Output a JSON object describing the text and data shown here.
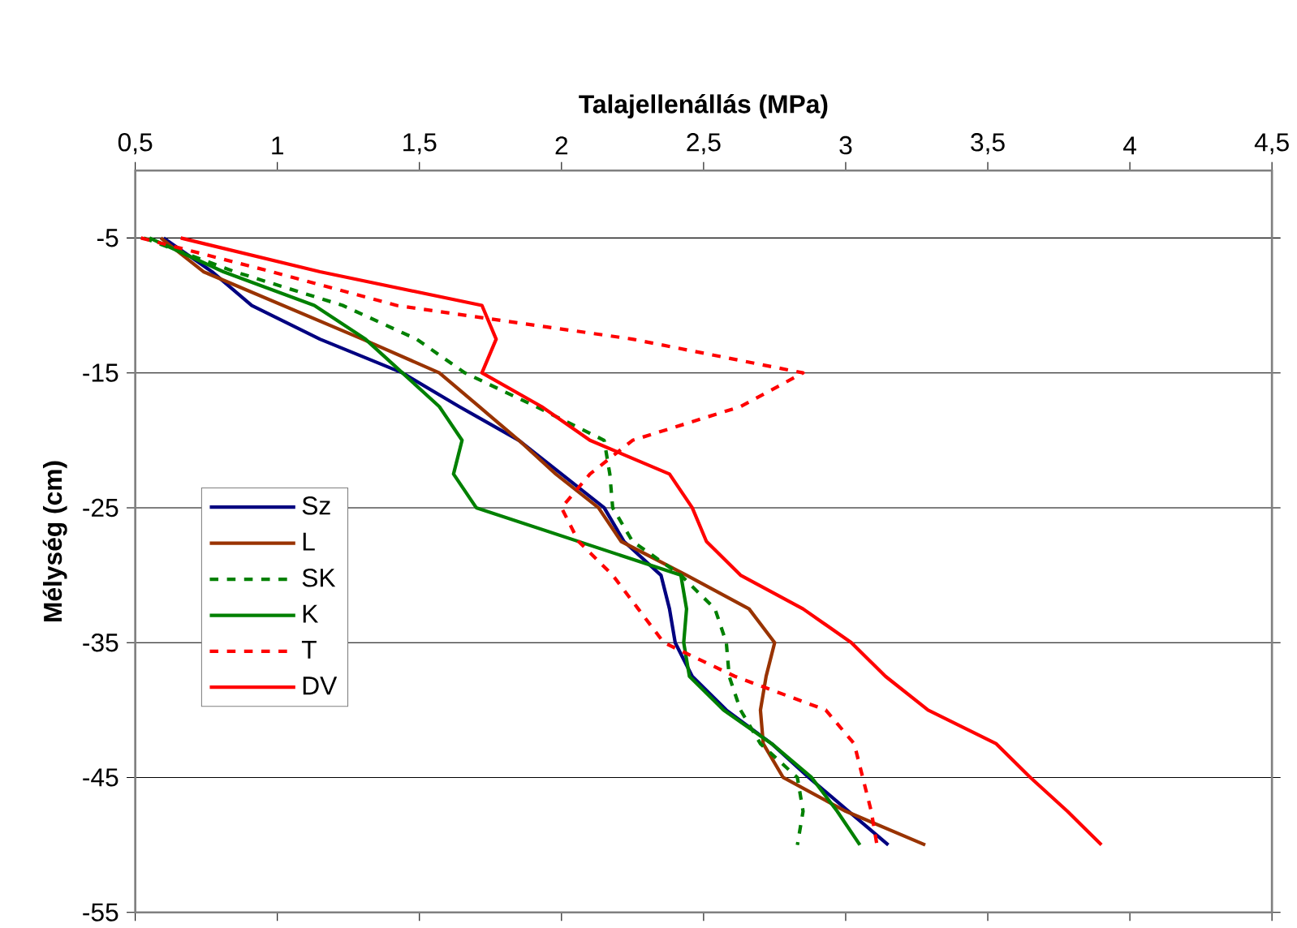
{
  "chart_data": {
    "type": "line",
    "xlabel": "Talajellenállás (MPa)",
    "ylabel": "Mélység (cm)",
    "xlim": [
      0.5,
      4.5
    ],
    "ylim": [
      -55,
      0
    ],
    "xticks": [
      {
        "value": 0.5,
        "label": "0,5"
      },
      1,
      {
        "value": 1.5,
        "label": "1,5"
      },
      2,
      {
        "value": 2.5,
        "label": "2,5"
      },
      3,
      {
        "value": 3.5,
        "label": "3,5"
      },
      4,
      {
        "value": 4.5,
        "label": "4,5"
      }
    ],
    "yticks": [
      -55,
      -45,
      -35,
      -25,
      -15,
      -5
    ],
    "grid": "y",
    "legend": "left",
    "marker": "none",
    "series": [
      {
        "name": "Sz",
        "color": "#000080",
        "line_style": "solid",
        "x": [
          0.6,
          0.77,
          0.91,
          1.15,
          1.44,
          1.64,
          1.85,
          2.0,
          2.15,
          2.22,
          2.35,
          2.38,
          2.4,
          2.46,
          2.58,
          2.74,
          2.87,
          3.01,
          3.15
        ],
        "values": [
          -5,
          -7.5,
          -10,
          -12.5,
          -15,
          -17.5,
          -20,
          -22.5,
          -25,
          -27.5,
          -30,
          -32.5,
          -35,
          -37.5,
          -40,
          -42.5,
          -45,
          -47.5,
          -50
        ]
      },
      {
        "name": "L",
        "color": "#993300",
        "line_style": "solid",
        "x": [
          0.59,
          0.74,
          1.02,
          1.3,
          1.57,
          1.71,
          1.85,
          1.98,
          2.13,
          2.21,
          2.44,
          2.66,
          2.75,
          2.72,
          2.7,
          2.71,
          2.78,
          3.0,
          3.28
        ],
        "values": [
          -5,
          -7.5,
          -10,
          -12.5,
          -15,
          -17.5,
          -20,
          -22.5,
          -25,
          -27.5,
          -30,
          -32.5,
          -35,
          -37.5,
          -40,
          -42.5,
          -45,
          -47.5,
          -50
        ]
      },
      {
        "name": "SK",
        "color": "#008000",
        "line_style": "dashed",
        "x": [
          0.53,
          0.85,
          1.23,
          1.49,
          1.66,
          1.91,
          2.15,
          2.17,
          2.18,
          2.25,
          2.42,
          2.54,
          2.58,
          2.59,
          2.63,
          2.7,
          2.83,
          2.85,
          2.83
        ],
        "values": [
          -5,
          -7.5,
          -10,
          -12.5,
          -15,
          -17.5,
          -20,
          -22.5,
          -25,
          -27.5,
          -30,
          -32.5,
          -35,
          -37.5,
          -40,
          -42.5,
          -45,
          -47.5,
          -50
        ]
      },
      {
        "name": "K",
        "color": "#008000",
        "line_style": "solid",
        "x": [
          0.55,
          0.81,
          1.13,
          1.31,
          1.44,
          1.57,
          1.65,
          1.62,
          1.7,
          2.06,
          2.42,
          2.44,
          2.43,
          2.45,
          2.57,
          2.74,
          2.88,
          2.97,
          3.05
        ],
        "values": [
          -5,
          -7.5,
          -10,
          -12.5,
          -15,
          -17.5,
          -20,
          -22.5,
          -25,
          -27.5,
          -30,
          -32.5,
          -35,
          -37.5,
          -40,
          -42.5,
          -45,
          -47.5,
          -50
        ]
      },
      {
        "name": "T",
        "color": "#ff0000",
        "line_style": "dashed",
        "x": [
          0.52,
          0.98,
          1.42,
          2.25,
          2.85,
          2.63,
          2.25,
          2.1,
          2.0,
          2.06,
          2.18,
          2.27,
          2.36,
          2.61,
          2.93,
          3.03,
          3.06,
          3.09,
          3.11
        ],
        "values": [
          -5,
          -7.5,
          -10,
          -12.5,
          -15,
          -17.5,
          -20,
          -22.5,
          -25,
          -27.5,
          -30,
          -32.5,
          -35,
          -37.5,
          -40,
          -42.5,
          -45,
          -47.5,
          -50
        ]
      },
      {
        "name": "DV",
        "color": "#ff0000",
        "line_style": "solid",
        "x": [
          0.66,
          1.15,
          1.72,
          1.77,
          1.72,
          1.93,
          2.1,
          2.38,
          2.46,
          2.51,
          2.63,
          2.85,
          3.02,
          3.14,
          3.29,
          3.53,
          3.65,
          3.78,
          3.9
        ],
        "values": [
          -5,
          -7.5,
          -10,
          -12.5,
          -15,
          -17.5,
          -20,
          -22.5,
          -25,
          -27.5,
          -30,
          -32.5,
          -35,
          -37.5,
          -40,
          -42.5,
          -45,
          -47.5,
          -50
        ]
      }
    ]
  }
}
